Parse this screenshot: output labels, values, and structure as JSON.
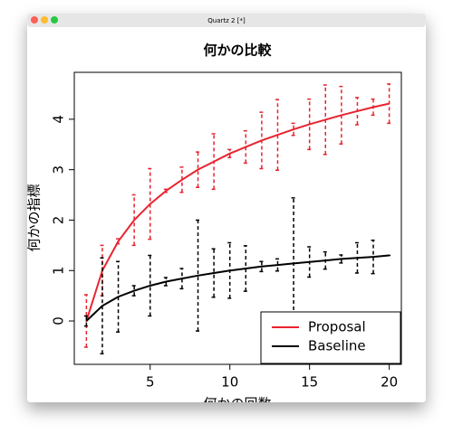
{
  "window_title": "Quartz 2 [*]",
  "chart_data": {
    "type": "line",
    "title": "何かの比較",
    "x_label": "何かの回数",
    "y_label": "何かの指標",
    "x": [
      1,
      2,
      3,
      4,
      5,
      6,
      7,
      8,
      9,
      10,
      11,
      12,
      13,
      14,
      15,
      16,
      17,
      18,
      19,
      20
    ],
    "series": [
      {
        "name": "Proposal",
        "color": "#e8242f",
        "values": [
          0,
          1.0,
          1.58,
          2.0,
          2.32,
          2.58,
          2.8,
          3.0,
          3.16,
          3.32,
          3.45,
          3.58,
          3.69,
          3.8,
          3.9,
          3.99,
          4.08,
          4.16,
          4.24,
          4.31
        ],
        "errors": [
          0.52,
          0.5,
          0.05,
          0.5,
          0.7,
          0.03,
          0.25,
          0.35,
          0.55,
          0.08,
          0.32,
          0.56,
          0.7,
          0.12,
          0.5,
          0.69,
          0.57,
          0.27,
          0.16,
          0.39
        ]
      },
      {
        "name": "Baseline",
        "color": "#000000",
        "values": [
          0,
          0.3,
          0.48,
          0.6,
          0.7,
          0.78,
          0.84,
          0.9,
          0.95,
          1.0,
          1.04,
          1.08,
          1.11,
          1.14,
          1.17,
          1.2,
          1.23,
          1.25,
          1.27,
          1.3
        ],
        "errors": [
          0.1,
          0.95,
          0.7,
          0.1,
          0.6,
          0.08,
          0.2,
          1.1,
          0.48,
          0.55,
          0.45,
          0.1,
          0.12,
          1.3,
          0.3,
          0.17,
          0.08,
          0.3,
          0.33,
          0
        ]
      }
    ],
    "xlim": [
      0.24,
      20.76
    ],
    "xticks": [
      5,
      10,
      15,
      20
    ],
    "ylim": [
      -0.86,
      4.93
    ],
    "yticks": [
      0,
      1,
      2,
      3,
      4
    ],
    "legend": "bottomright"
  }
}
